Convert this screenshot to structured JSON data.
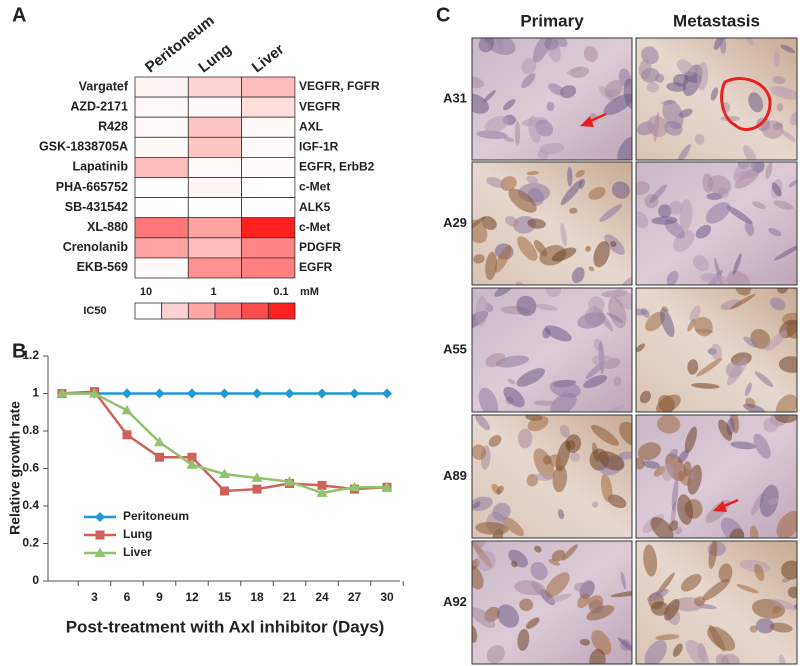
{
  "chart_data": [
    {
      "type": "heatmap",
      "label": "A",
      "columns": [
        "Peritoneum",
        "Lung",
        "Liver"
      ],
      "rows": [
        "Vargatef",
        "AZD-2171",
        "R428",
        "GSK-1838705A",
        "Lapatinib",
        "PHA-665752",
        "SB-431542",
        "XL-880",
        "Crenolanib",
        "EKB-569"
      ],
      "row_annotations": [
        "VEGFR, FGFR",
        "VEGFR",
        "AXL",
        "IGF-1R",
        "EGFR, ErbB2",
        "c-Met",
        "ALK5",
        "c-Met",
        "PDGFR",
        "EGFR"
      ],
      "values": [
        [
          8,
          4,
          2.5
        ],
        [
          9,
          9,
          5
        ],
        [
          9,
          3,
          9
        ],
        [
          9,
          3,
          9
        ],
        [
          2.5,
          9,
          9
        ],
        [
          10,
          8,
          10
        ],
        [
          10,
          10,
          10
        ],
        [
          0.6,
          1.5,
          0.1
        ],
        [
          1.5,
          2.5,
          0.8
        ],
        [
          9,
          1,
          0.7
        ]
      ],
      "colors": [
        "#ffffff",
        "#ff2020"
      ],
      "clim": [
        10,
        0.1
      ],
      "log_scale": true,
      "colorbar_title": "IC50",
      "colorbar_ticks": [
        10,
        1,
        0.1
      ],
      "unit": "mM"
    },
    {
      "type": "line",
      "label": "B",
      "categories": [
        null,
        "3",
        "6",
        "9",
        "12",
        "15",
        "18",
        "21",
        "24",
        "27",
        "30"
      ],
      "series": [
        {
          "name": "Peritoneum",
          "color": "#1f9ad6",
          "marker": "diamond",
          "values": [
            1,
            1,
            1,
            1,
            1,
            1,
            1,
            1,
            1,
            1,
            1
          ]
        },
        {
          "name": "Lung",
          "color": "#d0605a",
          "marker": "square",
          "values": [
            1,
            1.01,
            0.78,
            0.66,
            0.66,
            0.48,
            0.49,
            0.52,
            0.51,
            0.49,
            0.5
          ]
        },
        {
          "name": "Liver",
          "color": "#93c26d",
          "marker": "triangle",
          "values": [
            1,
            1,
            0.91,
            0.74,
            0.62,
            0.57,
            0.55,
            0.53,
            0.47,
            0.5,
            0.5
          ]
        }
      ],
      "y_label": "Relative growth rate",
      "x_label": "Post-treatment with Axl inhibitor (Days)",
      "ylim": [
        0,
        1.2
      ],
      "yticks": [
        0,
        0.2,
        0.4,
        0.6,
        0.8,
        1,
        1.2
      ],
      "legend": "lower-left"
    }
  ],
  "panel_c": {
    "label": "C",
    "columns": [
      "Primary",
      "Metastasis"
    ],
    "rows": [
      "A31",
      "A29",
      "A55",
      "A89",
      "A92"
    ]
  }
}
